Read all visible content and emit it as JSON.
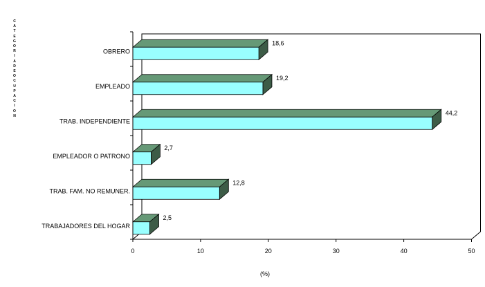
{
  "chart_data": {
    "type": "bar",
    "orientation": "horizontal",
    "style": "3d",
    "categories": [
      "OBRERO",
      "EMPLEADO",
      "TRAB. INDEPENDIENTE",
      "EMPLEADOR O PATRONO",
      "TRAB. FAM. NO REMUNER.",
      "TRABAJADORES DEL HOGAR"
    ],
    "values": [
      18.6,
      19.2,
      44.2,
      2.7,
      12.8,
      2.5
    ],
    "value_labels": [
      "18,6",
      "19,2",
      "44,2",
      "2,7",
      "12,8",
      "2,5"
    ],
    "ylabel": "CATEGORIA DE OCUPACION",
    "xlabel": "(%)",
    "xlim": [
      0,
      50
    ],
    "xticks": [
      0,
      10,
      20,
      30,
      40,
      50
    ],
    "grid": false,
    "legend": "none",
    "colors": {
      "bar_front": "#99ffff",
      "bar_top": "#669977",
      "bar_side": "#3d5c47",
      "wall": "#ffffff",
      "axis": "#000000"
    }
  }
}
